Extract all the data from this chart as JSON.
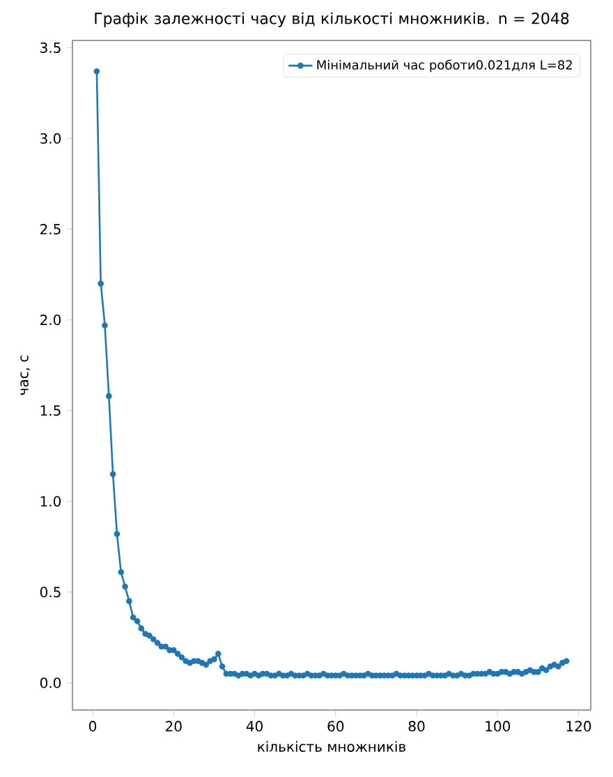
{
  "chart_data": {
    "type": "line",
    "title": "Графік залежності часу від кількості множників. n = 2048",
    "xlabel": "кількість множників",
    "ylabel": "час, с",
    "x": [
      1,
      2,
      3,
      4,
      5,
      6,
      7,
      8,
      9,
      10,
      11,
      12,
      13,
      14,
      15,
      16,
      17,
      18,
      19,
      20,
      21,
      22,
      23,
      24,
      25,
      26,
      27,
      28,
      29,
      30,
      31,
      32,
      33,
      34,
      35,
      36,
      37,
      38,
      39,
      40,
      41,
      42,
      43,
      44,
      45,
      46,
      47,
      48,
      49,
      50,
      51,
      52,
      53,
      54,
      55,
      56,
      57,
      58,
      59,
      60,
      61,
      62,
      63,
      64,
      65,
      66,
      67,
      68,
      69,
      70,
      71,
      72,
      73,
      74,
      75,
      76,
      77,
      78,
      79,
      80,
      81,
      82,
      83,
      84,
      85,
      86,
      87,
      88,
      89,
      90,
      91,
      92,
      93,
      94,
      95,
      96,
      97,
      98,
      99,
      100,
      101,
      102,
      103,
      104,
      105,
      106,
      107,
      108,
      109,
      110,
      111,
      112,
      113,
      114,
      115,
      116,
      117
    ],
    "series": [
      {
        "name": "Мінімальний час роботи0.021для L=82",
        "color": "#1f77b4",
        "values": [
          3.37,
          2.2,
          1.97,
          1.58,
          1.15,
          0.82,
          0.61,
          0.53,
          0.45,
          0.36,
          0.34,
          0.3,
          0.27,
          0.26,
          0.24,
          0.22,
          0.2,
          0.2,
          0.18,
          0.18,
          0.16,
          0.14,
          0.12,
          0.11,
          0.12,
          0.12,
          0.11,
          0.1,
          0.12,
          0.13,
          0.16,
          0.09,
          0.05,
          0.05,
          0.05,
          0.04,
          0.05,
          0.05,
          0.04,
          0.05,
          0.04,
          0.05,
          0.05,
          0.04,
          0.04,
          0.05,
          0.04,
          0.04,
          0.05,
          0.04,
          0.04,
          0.04,
          0.05,
          0.04,
          0.04,
          0.04,
          0.05,
          0.04,
          0.04,
          0.04,
          0.04,
          0.05,
          0.04,
          0.04,
          0.04,
          0.04,
          0.04,
          0.05,
          0.04,
          0.04,
          0.04,
          0.04,
          0.04,
          0.04,
          0.05,
          0.04,
          0.04,
          0.04,
          0.04,
          0.04,
          0.04,
          0.04,
          0.05,
          0.04,
          0.04,
          0.04,
          0.04,
          0.05,
          0.04,
          0.04,
          0.05,
          0.04,
          0.04,
          0.05,
          0.05,
          0.05,
          0.05,
          0.06,
          0.05,
          0.05,
          0.06,
          0.06,
          0.05,
          0.06,
          0.06,
          0.05,
          0.06,
          0.07,
          0.06,
          0.06,
          0.08,
          0.07,
          0.09,
          0.1,
          0.09,
          0.11,
          0.12
        ]
      }
    ],
    "xlim": [
      -5,
      123
    ],
    "xticks": [
      0,
      20,
      40,
      60,
      80,
      100,
      120
    ],
    "ylim": [
      -0.15,
      3.54
    ],
    "yticks": [
      {
        "value": 0,
        "label": "0.0"
      },
      {
        "value": 0.5,
        "label": "0.5"
      },
      {
        "value": 1,
        "label": "1.0"
      },
      {
        "value": 1.5,
        "label": "1.5"
      },
      {
        "value": 2,
        "label": "2.0"
      },
      {
        "value": 2.5,
        "label": "2.5"
      },
      {
        "value": 3,
        "label": "3.0"
      },
      {
        "value": 3.5,
        "label": "3.5"
      }
    ],
    "legend": "top right",
    "marker": "circle"
  }
}
